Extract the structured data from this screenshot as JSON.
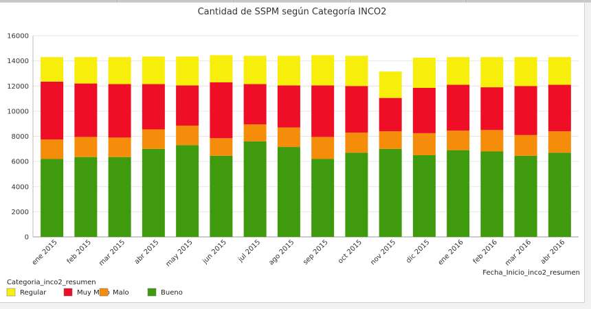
{
  "chart_data": {
    "type": "bar",
    "stacked": true,
    "title": "Cantidad de SSPM según Categoría INCO2",
    "xlabel": "Fecha_Inicio_inco2_resumen",
    "ylabel": "",
    "ylim": [
      0,
      16000
    ],
    "yticks": [
      0,
      2000,
      4000,
      6000,
      8000,
      10000,
      12000,
      14000,
      16000
    ],
    "grid": true,
    "legend_title": "Categoria_inco2_resumen",
    "legend_placement": "bottom-left",
    "categories": [
      "ene 2015",
      "feb 2015",
      "mar 2015",
      "abr 2015",
      "may 2015",
      "jun 2015",
      "jul 2015",
      "ago 2015",
      "sep 2015",
      "oct 2015",
      "nov 2015",
      "dic 2015",
      "ene 2016",
      "feb 2016",
      "mar 2016",
      "abr 2016"
    ],
    "series": [
      {
        "name": "Bueno",
        "color": "#3f9a0e",
        "values": [
          6200,
          6350,
          6350,
          7000,
          7300,
          6450,
          7600,
          7150,
          6200,
          6700,
          7000,
          6500,
          6900,
          6800,
          6450,
          6700
        ]
      },
      {
        "name": "Malo",
        "color": "#f58c0a",
        "values": [
          1550,
          1600,
          1550,
          1550,
          1550,
          1400,
          1350,
          1550,
          1750,
          1600,
          1400,
          1750,
          1550,
          1700,
          1650,
          1700
        ]
      },
      {
        "name": "Muy Malo",
        "color": "#ee0f27",
        "values": [
          4600,
          4250,
          4250,
          3600,
          3200,
          4450,
          3200,
          3350,
          4100,
          3700,
          2650,
          3600,
          3650,
          3400,
          3900,
          3700
        ]
      },
      {
        "name": "Regular",
        "color": "#f7ee0c",
        "values": [
          1950,
          2100,
          2150,
          2200,
          2300,
          2150,
          2250,
          2350,
          2400,
          2400,
          2100,
          2400,
          2200,
          2400,
          2300,
          2200
        ]
      }
    ],
    "legend_order": [
      "Regular",
      "Muy Malo",
      "Malo",
      "Bueno"
    ]
  }
}
